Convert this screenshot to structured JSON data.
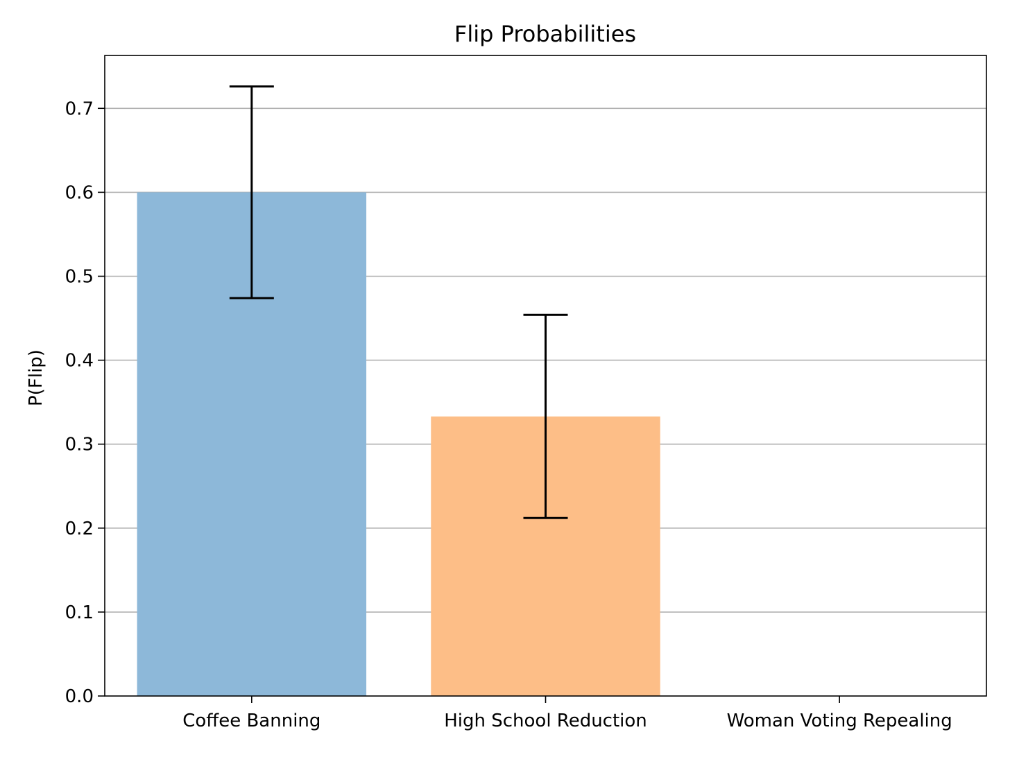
{
  "chart_data": {
    "type": "bar",
    "title": "Flip Probabilities",
    "xlabel": "",
    "ylabel": "P(Flip)",
    "categories": [
      "Coffee Banning",
      "High School Reduction",
      "Woman Voting Repealing"
    ],
    "values": [
      0.6,
      0.333,
      0.0
    ],
    "error_low": [
      0.474,
      0.212,
      0.0
    ],
    "error_high": [
      0.726,
      0.454,
      0.0
    ],
    "colors": [
      "#8db8d9",
      "#fdbe87",
      "#ffffff"
    ],
    "ylim": [
      0,
      0.763
    ],
    "yticks": [
      "0.0",
      "0.1",
      "0.2",
      "0.3",
      "0.4",
      "0.5",
      "0.6",
      "0.7"
    ],
    "grid": "y"
  }
}
